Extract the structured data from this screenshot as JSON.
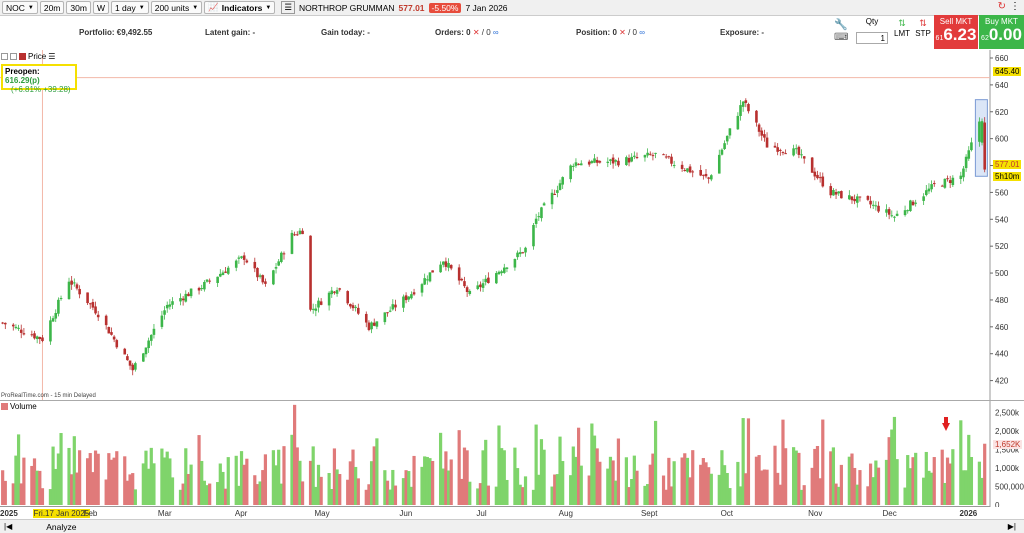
{
  "toolbar": {
    "symbol": "NOC",
    "timeframes": [
      "20m",
      "30m",
      "W"
    ],
    "interval": "1 day",
    "units": "200 units",
    "indicators": "Indicators",
    "instrument": "NORTHROP GRUMMAN",
    "last_price": "577.01",
    "change": "-5.50%",
    "date": "7 Jan 2026"
  },
  "account": {
    "portfolio": "Portfolio: €9,492.55",
    "latent_gain": "Latent gain: -",
    "gain_today": "Gain today: -",
    "orders": "Orders: 0",
    "orders_b": "/ 0",
    "position": "Position: 0",
    "position_b": "/ 0",
    "exposure": "Exposure: -"
  },
  "trade": {
    "qty_label": "Qty",
    "qty_value": "1",
    "lmt": "LMT",
    "stp": "STP",
    "sell_label": "Sell MKT",
    "sell_prefix": "61",
    "sell_price": "6.23",
    "buy_label": "Buy MKT",
    "buy_prefix": "62",
    "buy_price": "0.00"
  },
  "panel": {
    "price_label": "Price",
    "volume_label": "Volume",
    "source": "ProRealTime.com - 15 min Delayed",
    "preopen_label": "Preopen:",
    "preopen_value": "616.29(p)",
    "preopen_change": "(+6.81% +39.28)",
    "tag_high": "645.40",
    "tag_last": "577.01",
    "tag_timer": "5h10m",
    "tag_volume": "1,652K"
  },
  "colors": {
    "up": "#3cb649",
    "down": "#b8302f",
    "vol_up": "#7fd46b",
    "vol_down": "#e07a7a",
    "highlight": "#f5e000"
  },
  "chart_data": {
    "type": "candlestick",
    "title": "",
    "ylabel": "",
    "y_ticks": [
      420,
      440,
      460,
      480,
      500,
      520,
      540,
      560,
      580,
      600,
      620,
      640,
      660
    ],
    "ylim": [
      413,
      660
    ],
    "volume_ticks": [
      "0",
      "500,000",
      "1,000k",
      "1,500k",
      "2,000k",
      "2,500k"
    ],
    "volume_ylim": [
      0,
      2750000
    ],
    "x_labels": [
      "2025",
      "Fri.17 Jan 2025",
      "Feb",
      "Mar",
      "Apr",
      "May",
      "Jun",
      "Jul",
      "Aug",
      "Sept",
      "Oct",
      "Nov",
      "Dec",
      "2026"
    ],
    "anchors": [
      {
        "date": "2025-01-02",
        "close": 463
      },
      {
        "date": "2025-01-17",
        "close": 451
      },
      {
        "date": "2025-01-27",
        "close": 495
      },
      {
        "date": "2025-02-07",
        "close": 470
      },
      {
        "date": "2025-02-20",
        "close": 428
      },
      {
        "date": "2025-03-05",
        "close": 476
      },
      {
        "date": "2025-03-18",
        "close": 490
      },
      {
        "date": "2025-04-03",
        "close": 512
      },
      {
        "date": "2025-04-11",
        "close": 490
      },
      {
        "date": "2025-04-21",
        "close": 528
      },
      {
        "date": "2025-04-25",
        "close": 532
      },
      {
        "date": "2025-04-28",
        "close": 472
      },
      {
        "date": "2025-05-08",
        "close": 490
      },
      {
        "date": "2025-05-20",
        "close": 460
      },
      {
        "date": "2025-06-05",
        "close": 485
      },
      {
        "date": "2025-06-17",
        "close": 510
      },
      {
        "date": "2025-06-27",
        "close": 484
      },
      {
        "date": "2025-07-18",
        "close": 518
      },
      {
        "date": "2025-07-22",
        "close": 540
      },
      {
        "date": "2025-08-05",
        "close": 582
      },
      {
        "date": "2025-08-22",
        "close": 583
      },
      {
        "date": "2025-09-05",
        "close": 588
      },
      {
        "date": "2025-09-25",
        "close": 570
      },
      {
        "date": "2025-10-08",
        "close": 628
      },
      {
        "date": "2025-10-17",
        "close": 595
      },
      {
        "date": "2025-10-28",
        "close": 590
      },
      {
        "date": "2025-11-10",
        "close": 560
      },
      {
        "date": "2025-11-24",
        "close": 552
      },
      {
        "date": "2025-12-04",
        "close": 542
      },
      {
        "date": "2025-12-19",
        "close": 565
      },
      {
        "date": "2025-12-29",
        "close": 572
      },
      {
        "date": "2026-01-05",
        "close": 613
      },
      {
        "date": "2026-01-07",
        "close": 577
      }
    ],
    "volume_bars": 180,
    "volume_range": [
      400000,
      2750000
    ]
  }
}
